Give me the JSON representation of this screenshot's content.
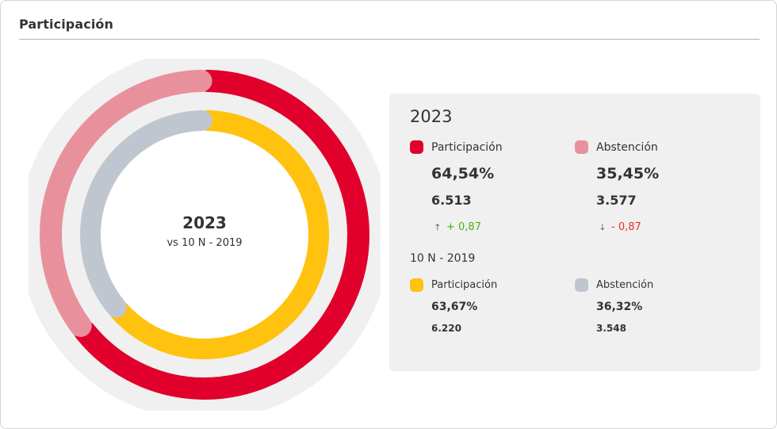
{
  "header": {
    "title": "Participación"
  },
  "center": {
    "year": "2023",
    "subtitle": "vs 10 N - 2019"
  },
  "panel": {
    "current": {
      "year": "2023",
      "participacion": {
        "label": "Participación",
        "percent": "64,54%",
        "count": "6.513",
        "delta": "+ 0,87",
        "delta_dir": "up"
      },
      "abstencion": {
        "label": "Abstención",
        "percent": "35,45%",
        "count": "3.577",
        "delta": "- 0,87",
        "delta_dir": "down"
      }
    },
    "previous": {
      "year": "10 N - 2019",
      "participacion": {
        "label": "Participación",
        "percent": "63,67%",
        "count": "6.220"
      },
      "abstencion": {
        "label": "Abstención",
        "percent": "36,32%",
        "count": "3.548"
      }
    }
  },
  "colors": {
    "participacion_2023": "#e0002b",
    "abstencion_2023": "#e8919c",
    "participacion_2019": "#ffc20e",
    "abstencion_2019": "#c0c6d0",
    "delta_up": "#4caf1e",
    "delta_down": "#e53517",
    "track": "#f0f0f0"
  },
  "chart_data": {
    "type": "pie",
    "variant": "nested-donut",
    "rings": [
      {
        "name": "2023",
        "position": "outer",
        "slices": [
          {
            "name": "Participación",
            "value": 64.54
          },
          {
            "name": "Abstención",
            "value": 35.45
          }
        ]
      },
      {
        "name": "10 N - 2019",
        "position": "inner",
        "slices": [
          {
            "name": "Participación",
            "value": 63.67
          },
          {
            "name": "Abstención",
            "value": 36.32
          }
        ]
      }
    ]
  }
}
